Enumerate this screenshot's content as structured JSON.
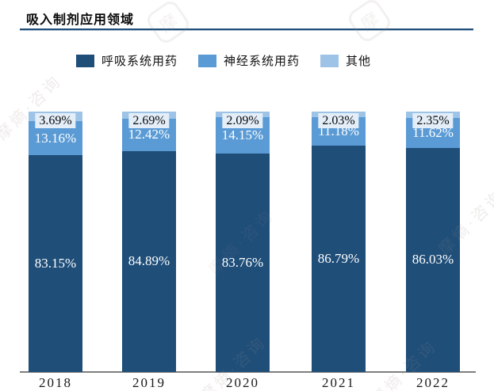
{
  "header": {
    "title": "吸入制剂应用领域"
  },
  "watermark": {
    "text": "摩熵·咨询",
    "logo_text": "摩"
  },
  "colors": {
    "respiratory": "#1F4E79",
    "nervous": "#5B9BD5",
    "other": "#9DC3E6",
    "axis": "#7F7F7F",
    "title_rule": "#1F4E79",
    "other_label_bg": "#E4EEF8"
  },
  "chart_data": {
    "type": "bar",
    "stacked": true,
    "orientation": "vertical",
    "title": "吸入制剂应用领域",
    "xlabel": "",
    "ylabel": "",
    "ylim": [
      0,
      100
    ],
    "value_unit": "%",
    "grid": false,
    "legend_position": "top",
    "categories": [
      "2018",
      "2019",
      "2020",
      "2021",
      "2022"
    ],
    "series": [
      {
        "name": "呼吸系统用药",
        "color_key": "respiratory",
        "values": [
          83.15,
          84.89,
          83.76,
          86.79,
          86.03
        ],
        "labels": [
          "83.15%",
          "84.89%",
          "83.76%",
          "86.79%",
          "86.03%"
        ]
      },
      {
        "name": "神经系统用药",
        "color_key": "nervous",
        "values": [
          13.16,
          12.42,
          14.15,
          11.18,
          11.62
        ],
        "labels": [
          "13.16%",
          "12.42%",
          "14.15%",
          "11.18%",
          "11.62%"
        ]
      },
      {
        "name": "其他",
        "color_key": "other",
        "values": [
          3.69,
          2.69,
          2.09,
          2.03,
          2.35
        ],
        "labels": [
          "3.69%",
          "2.69%",
          "2.09%",
          "2.03%",
          "2.35%"
        ]
      }
    ]
  }
}
